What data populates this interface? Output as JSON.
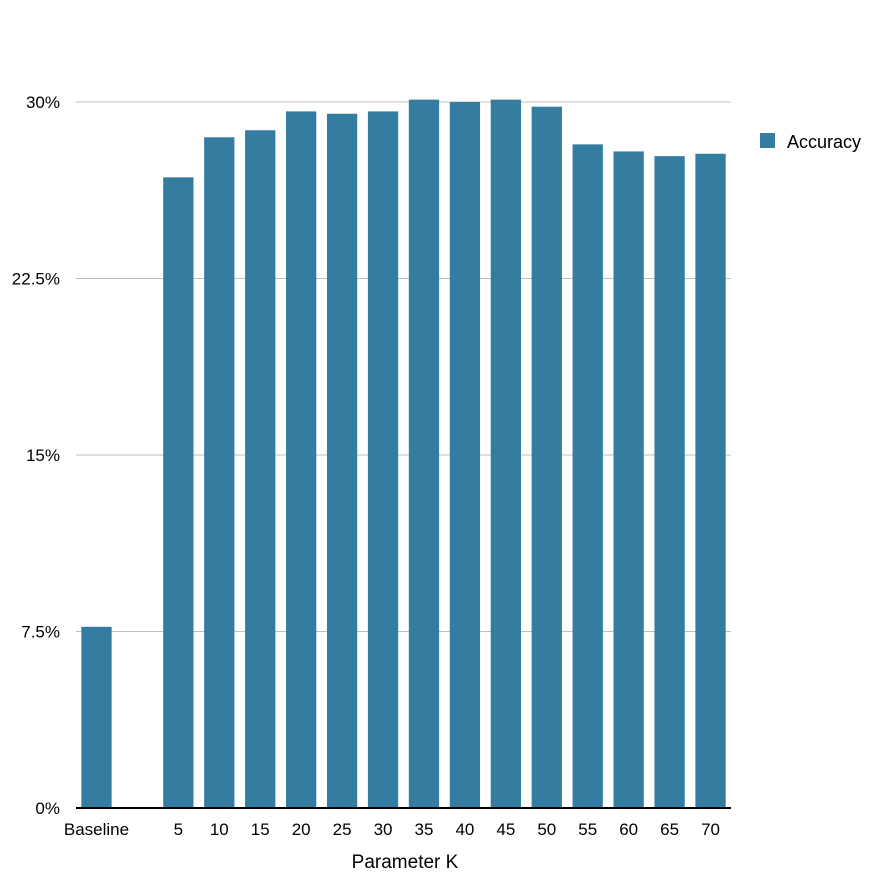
{
  "chart_data": {
    "type": "bar",
    "title": "",
    "xlabel": "Parameter K",
    "ylabel": "",
    "categories": [
      "Baseline",
      "",
      "5",
      "10",
      "15",
      "20",
      "25",
      "30",
      "35",
      "40",
      "45",
      "50",
      "55",
      "60",
      "65",
      "70"
    ],
    "series": [
      {
        "name": "Accuracy",
        "color": "#357ca1",
        "values": [
          7.7,
          null,
          26.8,
          28.5,
          28.8,
          29.6,
          29.5,
          29.6,
          30.1,
          30.0,
          30.1,
          29.8,
          28.2,
          27.9,
          27.7,
          27.8
        ]
      }
    ],
    "ylim": [
      0,
      30
    ],
    "yticks": [
      0,
      7.5,
      15,
      22.5,
      30
    ],
    "ytick_labels": [
      "0%",
      "7.5%",
      "15%",
      "22.5%",
      "30%"
    ],
    "grid": true,
    "legend_position": "right"
  }
}
